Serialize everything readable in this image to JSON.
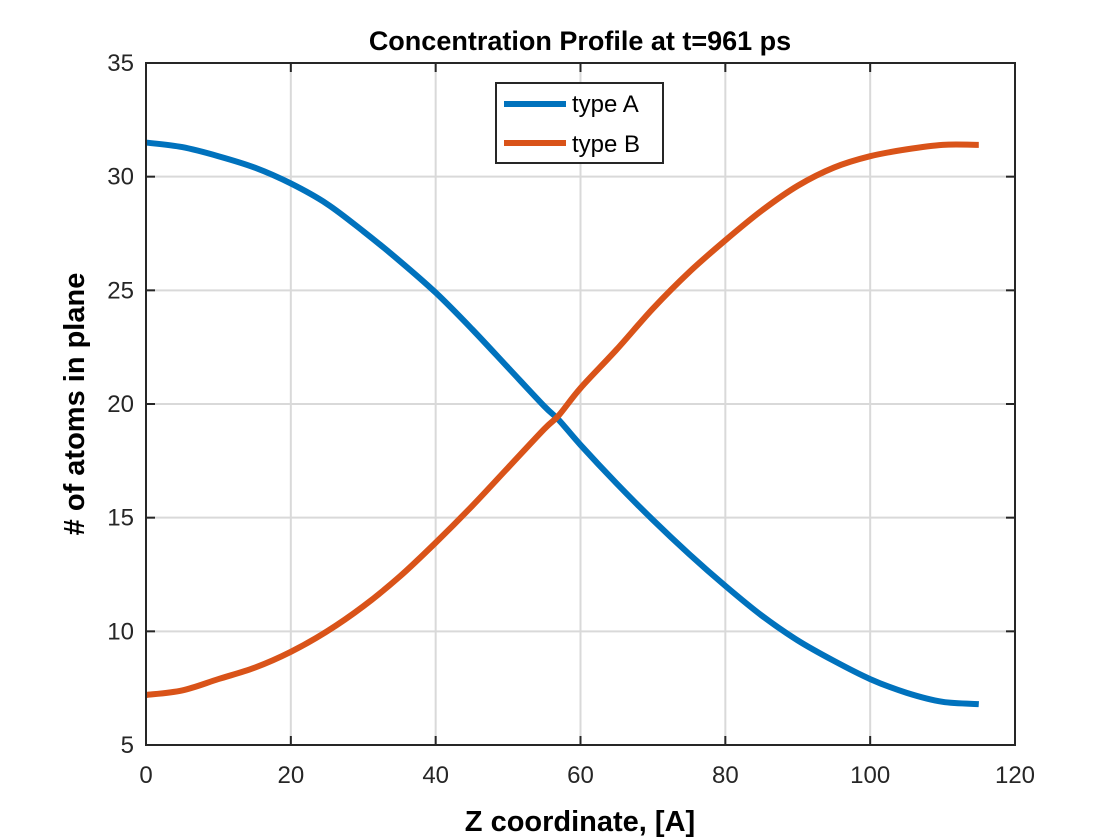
{
  "chart_data": {
    "type": "line",
    "title": "Concentration Profile at t=961 ps",
    "xlabel": "Z coordinate, [A]",
    "ylabel": "# of atoms in plane",
    "xlim": [
      0,
      120
    ],
    "ylim": [
      5,
      35
    ],
    "xticks": [
      "0",
      "20",
      "40",
      "60",
      "80",
      "100",
      "120"
    ],
    "yticks": [
      "5",
      "10",
      "15",
      "20",
      "25",
      "30",
      "35"
    ],
    "grid": true,
    "legend_position": "top-center",
    "series": [
      {
        "name": "type A",
        "color": "#0072BD",
        "x": [
          0,
          5,
          10,
          15,
          20,
          25,
          30,
          35,
          40,
          45,
          50,
          55,
          57,
          60,
          65,
          70,
          75,
          80,
          85,
          90,
          95,
          100,
          105,
          110,
          115
        ],
        "y": [
          31.5,
          31.3,
          30.9,
          30.4,
          29.7,
          28.8,
          27.6,
          26.3,
          24.9,
          23.3,
          21.6,
          19.9,
          19.3,
          18.2,
          16.5,
          14.9,
          13.4,
          12.0,
          10.7,
          9.6,
          8.7,
          7.9,
          7.3,
          6.9,
          6.8
        ]
      },
      {
        "name": "type B",
        "color": "#D95319",
        "x": [
          0,
          5,
          10,
          15,
          20,
          25,
          30,
          35,
          40,
          45,
          50,
          55,
          57,
          60,
          65,
          70,
          75,
          80,
          85,
          90,
          95,
          100,
          105,
          110,
          115
        ],
        "y": [
          7.2,
          7.4,
          7.9,
          8.4,
          9.1,
          10.0,
          11.1,
          12.4,
          13.9,
          15.5,
          17.2,
          18.9,
          19.5,
          20.7,
          22.4,
          24.2,
          25.8,
          27.2,
          28.5,
          29.6,
          30.4,
          30.9,
          31.2,
          31.4,
          31.4
        ]
      }
    ]
  }
}
